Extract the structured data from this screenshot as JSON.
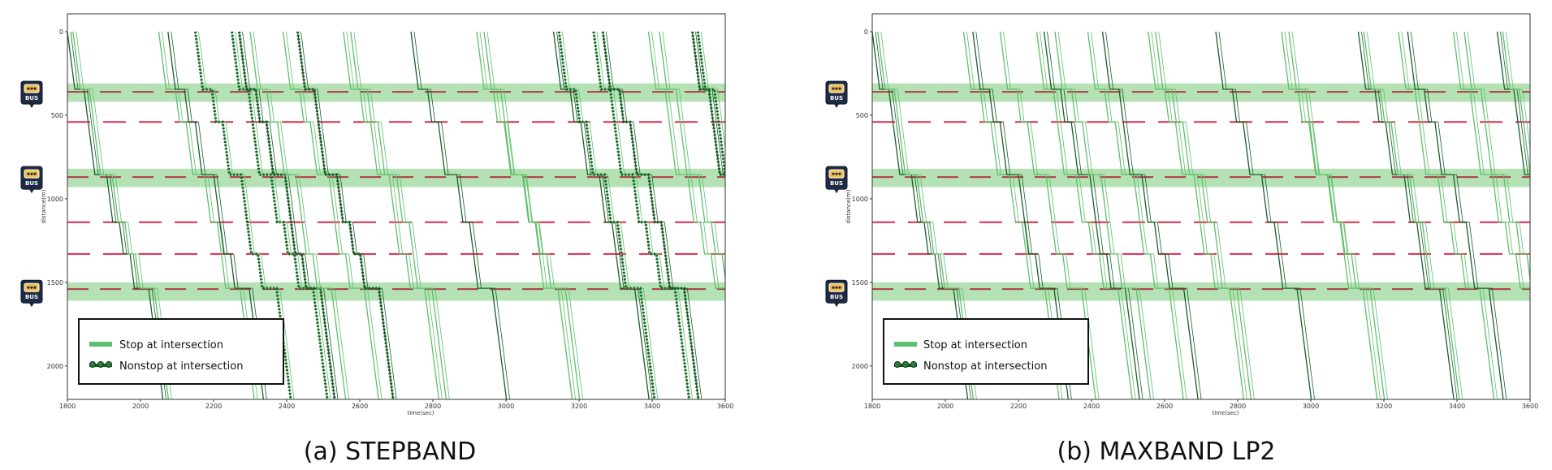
{
  "chart_data": [
    {
      "type": "line",
      "panel": "a",
      "caption": "(a) STEPBAND",
      "xlabel": "time(sec)",
      "ylabel": "distance(m)",
      "xlim": [
        1800,
        3600
      ],
      "ylim": [
        0,
        2200
      ],
      "y_inverted": true,
      "x_ticks": [
        "1800",
        "2000",
        "2200",
        "2400",
        "2600",
        "2800",
        "3000",
        "3200",
        "3400",
        "3600"
      ],
      "y_ticks": [
        "0",
        "500",
        "1000",
        "1500",
        "2000"
      ],
      "bus_stop_bands": [
        [
          310,
          420
        ],
        [
          820,
          930
        ],
        [
          1500,
          1610
        ]
      ],
      "bus_stop_icon_label": "BUS",
      "stop_signal_lines_at": [
        360,
        870,
        1540
      ],
      "red_signal_lines_at": [
        540,
        1140,
        1330
      ],
      "legend": [
        "Stop at intersection",
        "Nonstop at intersection"
      ],
      "trajectories_start_times": [
        1800,
        1815,
        2050,
        2075,
        2150,
        2250,
        2270,
        2300,
        2390,
        2430,
        2555,
        2575,
        2740,
        2920,
        2940,
        3130,
        3145,
        3240,
        3265,
        3390,
        3420,
        3510,
        3525
      ],
      "nonstop_trajectories_start_times": [
        2150,
        2250,
        2270,
        2430,
        3145,
        3240,
        3265,
        3510,
        3525
      ]
    },
    {
      "type": "line",
      "panel": "b",
      "caption": "(b) MAXBAND LP2",
      "xlabel": "time(sec)",
      "ylabel": "distance(m)",
      "xlim": [
        1800,
        3600
      ],
      "ylim": [
        0,
        2200
      ],
      "y_inverted": true,
      "x_ticks": [
        "1800",
        "2000",
        "2200",
        "2400",
        "2600",
        "2800",
        "3000",
        "3200",
        "3400",
        "3600"
      ],
      "y_ticks": [
        "0",
        "500",
        "1000",
        "1500",
        "2000"
      ],
      "bus_stop_bands": [
        [
          310,
          420
        ],
        [
          820,
          930
        ],
        [
          1500,
          1610
        ]
      ],
      "bus_stop_icon_label": "BUS",
      "stop_signal_lines_at": [
        360,
        870,
        1540
      ],
      "red_signal_lines_at": [
        540,
        1140,
        1330
      ],
      "legend": [
        "Stop at intersection",
        "Nonstop at intersection"
      ],
      "trajectories_start_times": [
        1800,
        1815,
        2050,
        2075,
        2150,
        2250,
        2270,
        2300,
        2390,
        2430,
        2555,
        2575,
        2740,
        2920,
        2940,
        3130,
        3145,
        3240,
        3265,
        3390,
        3420,
        3510,
        3525
      ],
      "nonstop_trajectories_start_times": []
    }
  ],
  "colors": {
    "band": "#b4e2b4",
    "band_line": "#b03a48",
    "red_line": "#e0294f",
    "stop_traj": "#5fbf6b",
    "dark_traj": "#1a5e2a",
    "nonstop": "#165a24",
    "axis": "#333333"
  }
}
